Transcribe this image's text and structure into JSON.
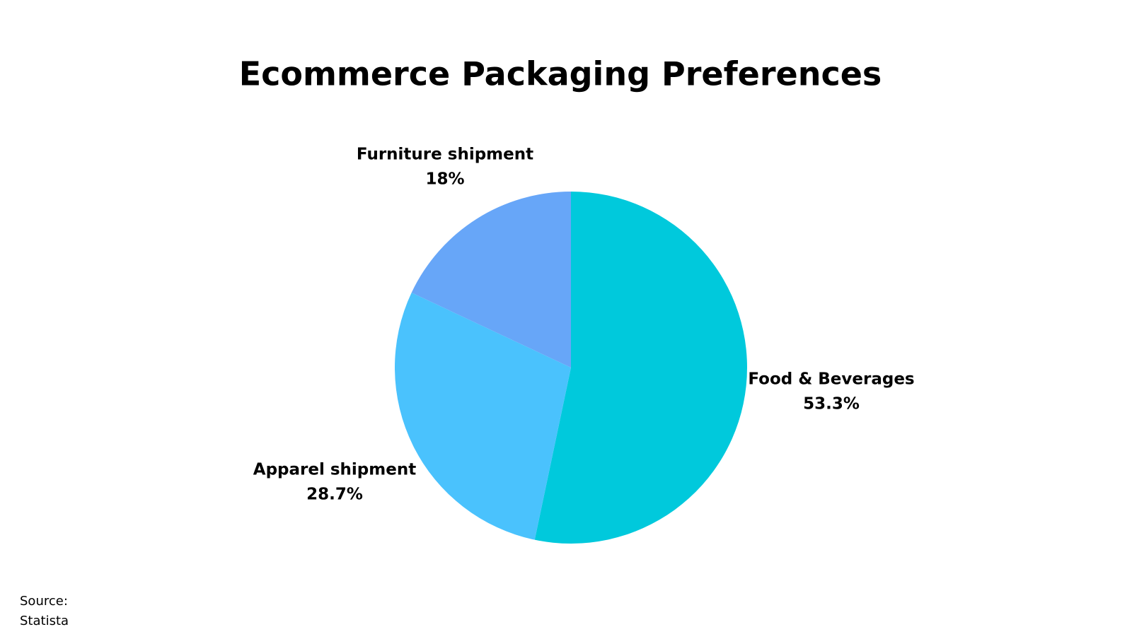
{
  "chart_data": {
    "type": "pie",
    "title": "Ecommerce Packaging Preferences",
    "categories": [
      "Food & Beverages",
      "Apparel shipment",
      "Furniture shipment"
    ],
    "values": [
      53.3,
      28.7,
      18
    ],
    "value_labels": [
      "53.3%",
      "28.7%",
      "18%"
    ],
    "colors": [
      "#00c9dc",
      "#4ac2fd",
      "#67a6f8"
    ],
    "source_label": "Source:",
    "source": "Statista"
  }
}
